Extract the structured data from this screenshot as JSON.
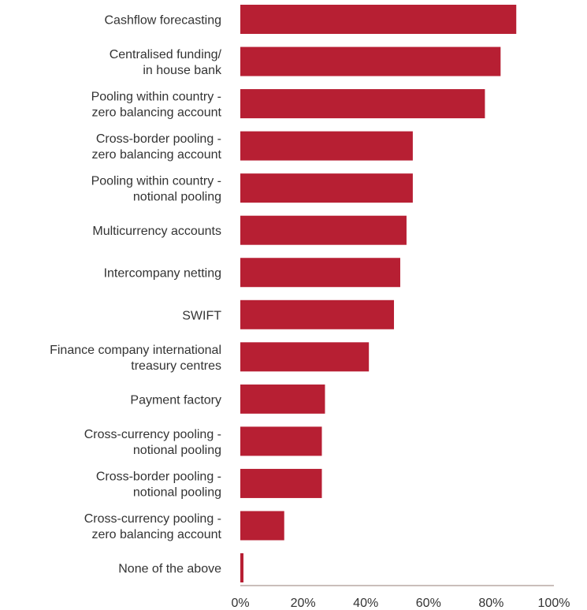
{
  "chart_data": {
    "type": "bar",
    "orientation": "horizontal",
    "categories": [
      [
        "Cashflow forecasting"
      ],
      [
        "Centralised funding/",
        "in house bank"
      ],
      [
        "Pooling within country -",
        "zero balancing account"
      ],
      [
        "Cross-border pooling -",
        "zero balancing account"
      ],
      [
        "Pooling within country -",
        "notional pooling"
      ],
      [
        "Multicurrency accounts"
      ],
      [
        "Intercompany netting"
      ],
      [
        "SWIFT"
      ],
      [
        "Finance company international",
        "treasury centres"
      ],
      [
        "Payment factory"
      ],
      [
        "Cross-currency pooling -",
        "notional pooling"
      ],
      [
        "Cross-border pooling -",
        "notional pooling"
      ],
      [
        "Cross-currency pooling -",
        "zero balancing account"
      ],
      [
        "None of the above"
      ]
    ],
    "values": [
      88,
      83,
      78,
      55,
      55,
      53,
      51,
      49,
      41,
      27,
      26,
      26,
      14,
      1
    ],
    "xlim": [
      0,
      100
    ],
    "xticks": [
      "0%",
      "20%",
      "40%",
      "60%",
      "80%",
      "100%"
    ],
    "bar_color": "#b71f33",
    "axis_color": "#b8a8a4",
    "grid": false,
    "legend": "none"
  }
}
